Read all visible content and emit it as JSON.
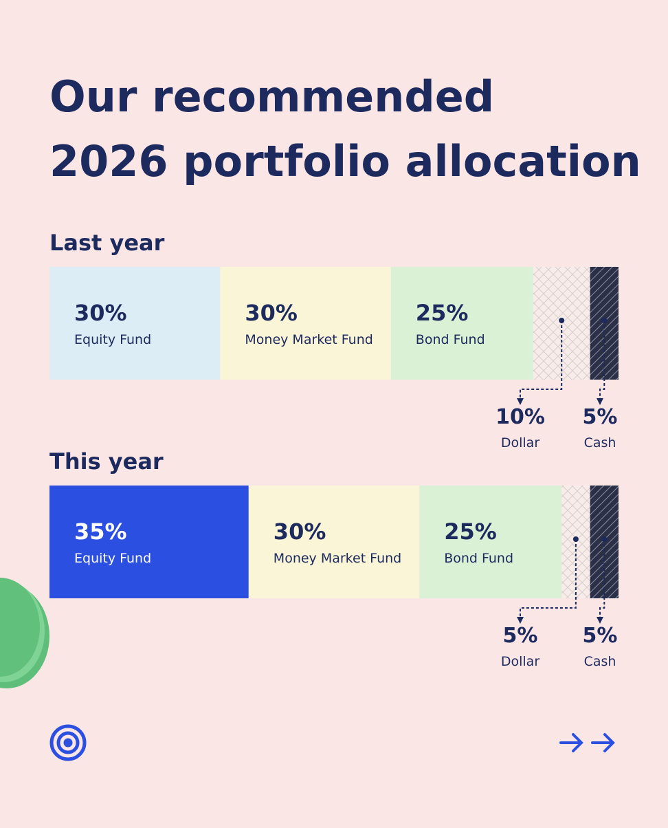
{
  "title": "Our recommended 2026 portfolio allocation",
  "chart_data": [
    {
      "type": "stacked_bar",
      "title": "Last year",
      "categories": [
        "Equity Fund",
        "Money Market Fund",
        "Bond Fund",
        "Dollar",
        "Cash"
      ],
      "values": [
        30,
        30,
        25,
        10,
        5
      ],
      "value_labels": [
        "30%",
        "30%",
        "25%",
        "10%",
        "5%"
      ],
      "colors": [
        "#dcedf6",
        "#fbf5d8",
        "#dbf1d6",
        "#f7ece9",
        "#2b3046"
      ]
    },
    {
      "type": "stacked_bar",
      "title": "This year",
      "categories": [
        "Equity Fund",
        "Money Market Fund",
        "Bond Fund",
        "Dollar",
        "Cash"
      ],
      "values": [
        35,
        30,
        25,
        5,
        5
      ],
      "value_labels": [
        "35%",
        "30%",
        "25%",
        "5%",
        "5%"
      ],
      "colors": [
        "#2b4fe0",
        "#fbf5d8",
        "#dbf1d6",
        "#f7ece9",
        "#2b3046"
      ]
    }
  ]
}
